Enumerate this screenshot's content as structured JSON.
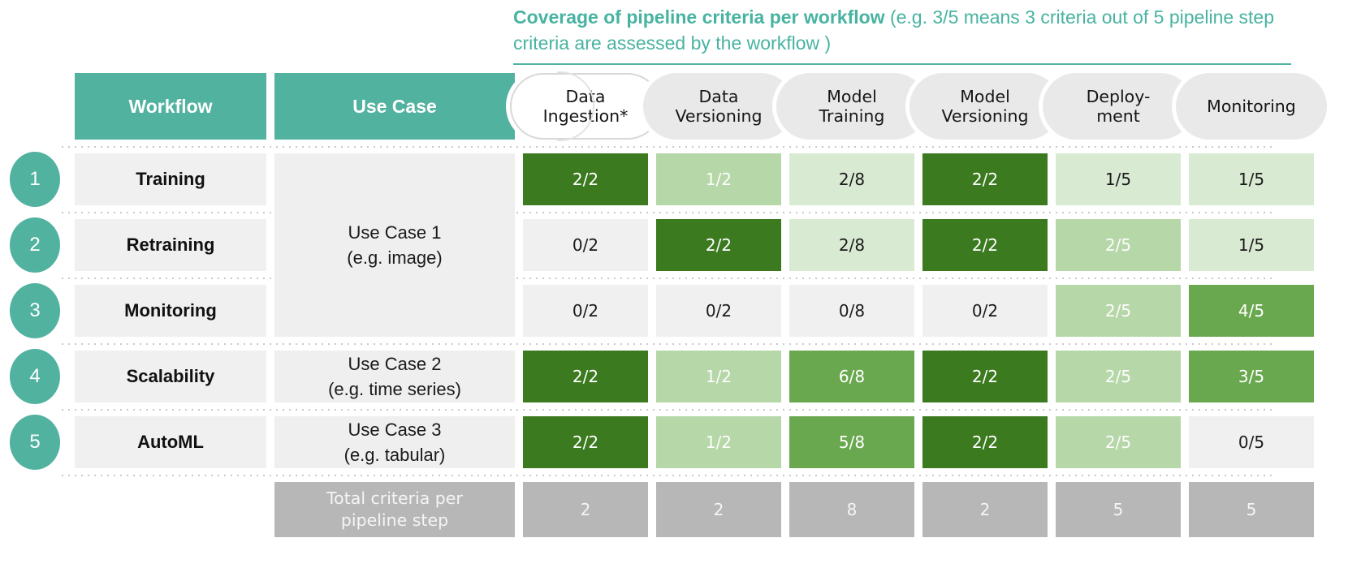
{
  "title": {
    "bold": "Coverage of pipeline criteria per workflow",
    "rest": " (e.g. 3/5 means 3 criteria out of 5 pipeline step criteria are assessed by the workflow )"
  },
  "colors": {
    "teal": "#52B2A0",
    "title_teal": "#48B3A1",
    "green_full": "#3B7A1F",
    "green_high": "#6AA84F",
    "green_mid": "#B6D7A8",
    "green_low": "#D9EAD3",
    "neutral_zero": "#F0F0F0",
    "total_gray": "#B7B7B7",
    "pill_gray": "#E9E9E9",
    "dots_gray": "#C9C9C9"
  },
  "table": {
    "workflow_header": "Workflow",
    "use_case_header": "Use Case",
    "steps": [
      {
        "lines": [
          "Data",
          "Ingestion*"
        ]
      },
      {
        "lines": [
          "Data",
          "Versioning"
        ]
      },
      {
        "lines": [
          "Model",
          "Training"
        ]
      },
      {
        "lines": [
          "Model",
          "Versioning"
        ]
      },
      {
        "lines": [
          "Deploy-",
          "ment"
        ]
      },
      {
        "lines": [
          "Monitoring"
        ]
      }
    ],
    "rows": [
      {
        "num": "1",
        "workflow": "Training",
        "cells": [
          {
            "value": "2/2",
            "level": "full"
          },
          {
            "value": "1/2",
            "level": "mid"
          },
          {
            "value": "2/8",
            "level": "low"
          },
          {
            "value": "2/2",
            "level": "full"
          },
          {
            "value": "1/5",
            "level": "low"
          },
          {
            "value": "1/5",
            "level": "low"
          }
        ]
      },
      {
        "num": "2",
        "workflow": "Retraining",
        "cells": [
          {
            "value": "0/2",
            "level": "zero"
          },
          {
            "value": "2/2",
            "level": "full"
          },
          {
            "value": "2/8",
            "level": "low"
          },
          {
            "value": "2/2",
            "level": "full"
          },
          {
            "value": "2/5",
            "level": "mid"
          },
          {
            "value": "1/5",
            "level": "low"
          }
        ]
      },
      {
        "num": "3",
        "workflow": "Monitoring",
        "cells": [
          {
            "value": "0/2",
            "level": "zero"
          },
          {
            "value": "0/2",
            "level": "zero"
          },
          {
            "value": "0/8",
            "level": "zero"
          },
          {
            "value": "0/2",
            "level": "zero"
          },
          {
            "value": "2/5",
            "level": "mid"
          },
          {
            "value": "4/5",
            "level": "high"
          }
        ]
      },
      {
        "num": "4",
        "workflow": "Scalability",
        "cells": [
          {
            "value": "2/2",
            "level": "full"
          },
          {
            "value": "1/2",
            "level": "mid"
          },
          {
            "value": "6/8",
            "level": "high"
          },
          {
            "value": "2/2",
            "level": "full"
          },
          {
            "value": "2/5",
            "level": "mid"
          },
          {
            "value": "3/5",
            "level": "high"
          }
        ]
      },
      {
        "num": "5",
        "workflow": "AutoML",
        "cells": [
          {
            "value": "2/2",
            "level": "full"
          },
          {
            "value": "1/2",
            "level": "mid"
          },
          {
            "value": "5/8",
            "level": "high"
          },
          {
            "value": "2/2",
            "level": "full"
          },
          {
            "value": "2/5",
            "level": "mid"
          },
          {
            "value": "0/5",
            "level": "zero"
          }
        ]
      }
    ],
    "use_cases": [
      {
        "label": "Use Case 1",
        "example": "(e.g. image)"
      },
      {
        "label": "Use Case 2",
        "example": "(e.g. time series)"
      },
      {
        "label": "Use Case 3",
        "example": "(e.g. tabular)"
      }
    ],
    "total": {
      "label": "Total criteria per pipeline step",
      "values": [
        "2",
        "2",
        "8",
        "2",
        "5",
        "5"
      ]
    }
  },
  "chart_data": {
    "type": "heatmap",
    "title": "Coverage of pipeline criteria per workflow (e.g. 3/5 means 3 criteria out of 5 pipeline step criteria are assessed by the workflow )",
    "columns": [
      "Data Ingestion*",
      "Data Versioning",
      "Model Training",
      "Model Versioning",
      "Deployment",
      "Monitoring"
    ],
    "rows": [
      "Training",
      "Retraining",
      "Monitoring",
      "Scalability",
      "AutoML"
    ],
    "row_use_cases": [
      "Use Case 1 (e.g. image)",
      "Use Case 1 (e.g. image)",
      "Use Case 1 (e.g. image)",
      "Use Case 2 (e.g. time series)",
      "Use Case 3 (e.g. tabular)"
    ],
    "values": [
      [
        "2/2",
        "1/2",
        "2/8",
        "2/2",
        "1/5",
        "1/5"
      ],
      [
        "0/2",
        "2/2",
        "2/8",
        "2/2",
        "2/5",
        "1/5"
      ],
      [
        "0/2",
        "0/2",
        "0/8",
        "0/2",
        "2/5",
        "4/5"
      ],
      [
        "2/2",
        "1/2",
        "6/8",
        "2/2",
        "2/5",
        "3/5"
      ],
      [
        "2/2",
        "1/2",
        "5/8",
        "2/2",
        "2/5",
        "0/5"
      ]
    ],
    "totals_per_pipeline_step": [
      2,
      2,
      8,
      2,
      5,
      5
    ],
    "legend_position": "none",
    "grid": false
  }
}
